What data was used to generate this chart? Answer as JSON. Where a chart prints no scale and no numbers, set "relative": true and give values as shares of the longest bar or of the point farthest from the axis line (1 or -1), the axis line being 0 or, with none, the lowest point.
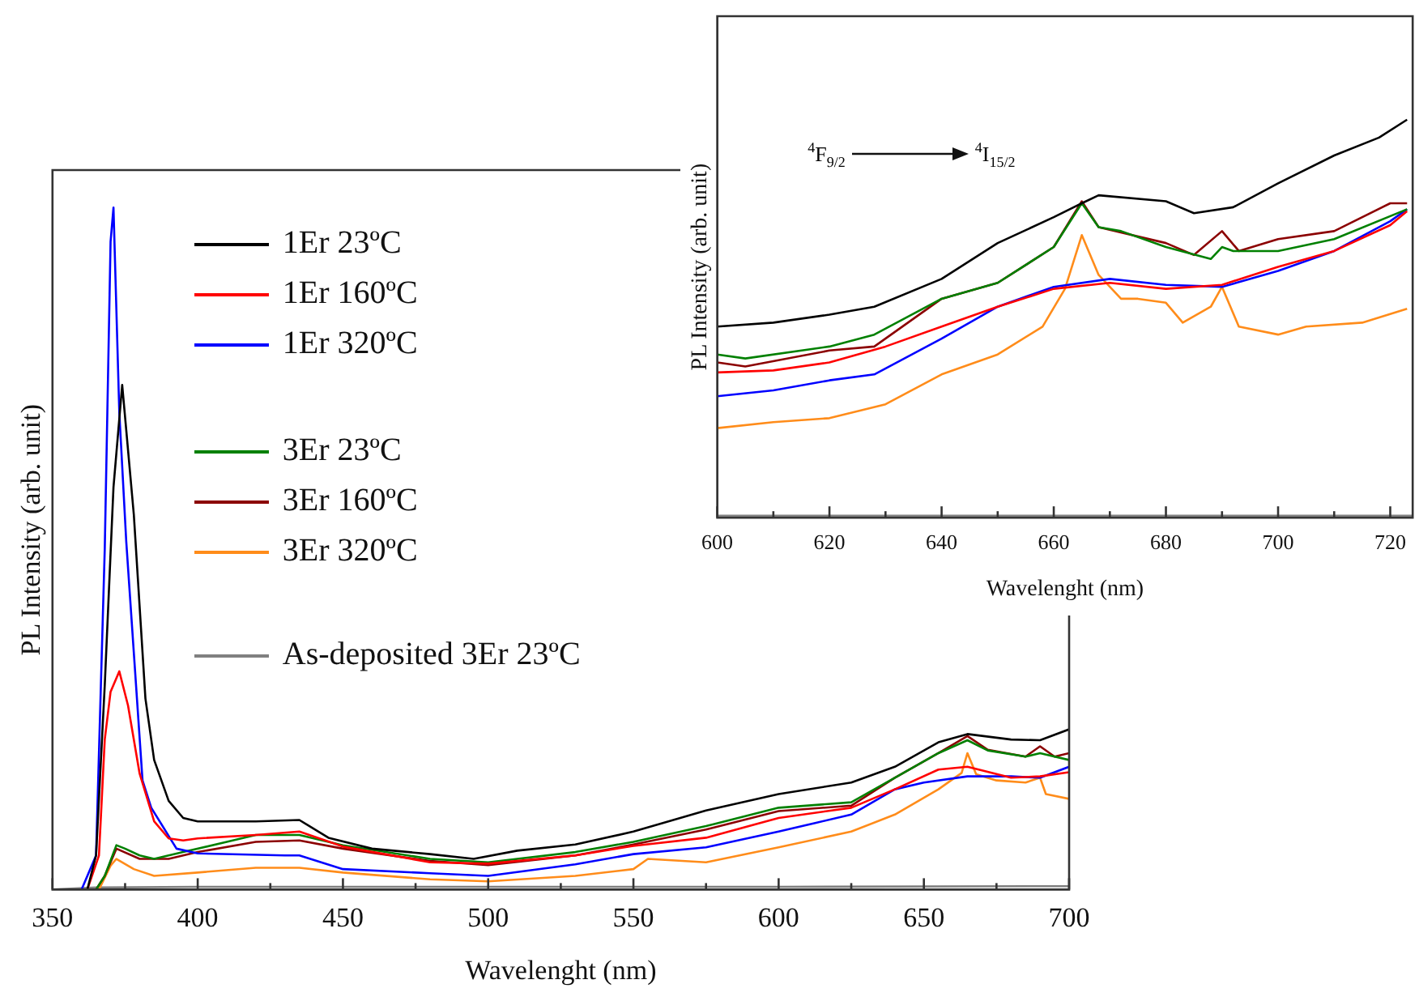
{
  "chart_data": [
    {
      "type": "line",
      "relative": true,
      "xlabel": "Wavelenght (nm)",
      "ylabel": "PL Intensity (arb. unit)",
      "xlim": [
        350,
        700
      ],
      "xticks": [
        350,
        {
          "value": 375,
          "label": null
        },
        400,
        {
          "value": 425,
          "label": null
        },
        450,
        {
          "value": 475,
          "label": null
        },
        500,
        {
          "value": 525,
          "label": null
        },
        550,
        {
          "value": 575,
          "label": null
        },
        600,
        {
          "value": 625,
          "label": null
        },
        650,
        {
          "value": 675,
          "label": null
        },
        700
      ],
      "tick_labels": "x",
      "legend": "top left",
      "series": [
        {
          "name": "1Er 23ºC",
          "color": "#000000",
          "x": [
            350,
            362,
            365,
            368,
            371,
            374,
            378,
            382,
            385,
            390,
            395,
            400,
            420,
            435,
            445,
            460,
            480,
            495,
            510,
            530,
            550,
            575,
            600,
            625,
            640,
            655,
            665,
            680,
            690,
            700
          ],
          "values": [
            0,
            0,
            0.05,
            0.3,
            0.59,
            0.74,
            0.55,
            0.28,
            0.19,
            0.13,
            0.105,
            0.1,
            0.1,
            0.102,
            0.076,
            0.06,
            0.052,
            0.045,
            0.057,
            0.066,
            0.085,
            0.116,
            0.14,
            0.157,
            0.18,
            0.216,
            0.228,
            0.22,
            0.219,
            0.235
          ]
        },
        {
          "name": "1Er 160ºC",
          "color": "#ff0000",
          "x": [
            350,
            362,
            366,
            368,
            370,
            373,
            376,
            380,
            385,
            390,
            395,
            400,
            420,
            435,
            450,
            480,
            500,
            530,
            550,
            575,
            600,
            625,
            640,
            655,
            665,
            680,
            690,
            700
          ],
          "values": [
            0,
            0,
            0.05,
            0.22,
            0.29,
            0.32,
            0.27,
            0.17,
            0.1,
            0.075,
            0.072,
            0.075,
            0.08,
            0.085,
            0.063,
            0.04,
            0.038,
            0.05,
            0.064,
            0.076,
            0.105,
            0.12,
            0.147,
            0.176,
            0.18,
            0.164,
            0.166,
            0.172
          ]
        },
        {
          "name": "1Er 320ºC",
          "color": "#0000ff",
          "x": [
            350,
            360,
            365,
            368,
            370,
            371,
            373,
            375.4,
            381,
            384,
            392.7,
            400,
            430,
            435,
            450,
            480,
            500,
            530,
            550,
            575,
            600,
            625,
            640,
            650,
            665,
            680,
            690,
            700
          ],
          "values": [
            0,
            0,
            0.05,
            0.5,
            0.95,
            1,
            0.7,
            0.51,
            0.16,
            0.12,
            0.06,
            0.053,
            0.05,
            0.05,
            0.03,
            0.024,
            0.02,
            0.037,
            0.052,
            0.062,
            0.085,
            0.11,
            0.147,
            0.157,
            0.166,
            0.166,
            0.164,
            0.18
          ]
        },
        {
          "name": "3Er 23ºC",
          "color": "#008000",
          "x": [
            350,
            365,
            368,
            372,
            375,
            380,
            385,
            395,
            410,
            420,
            435,
            450,
            480,
            500,
            530,
            550,
            575,
            600,
            625,
            640,
            655,
            665,
            672,
            685,
            690,
            700
          ],
          "values": [
            0,
            0,
            0.02,
            0.065,
            0.06,
            0.05,
            0.045,
            0.055,
            0.07,
            0.08,
            0.08,
            0.065,
            0.045,
            0.04,
            0.055,
            0.07,
            0.093,
            0.12,
            0.128,
            0.164,
            0.2,
            0.219,
            0.204,
            0.195,
            0.2,
            0.19
          ]
        },
        {
          "name": "3Er 160ºC",
          "color": "#8b0000",
          "x": [
            350,
            365,
            368,
            372,
            380,
            390,
            400,
            420,
            435,
            450,
            480,
            500,
            530,
            550,
            575,
            600,
            625,
            640,
            655,
            665,
            672,
            685,
            690,
            695,
            700
          ],
          "values": [
            0,
            0,
            0.02,
            0.06,
            0.045,
            0.045,
            0.055,
            0.07,
            0.072,
            0.06,
            0.042,
            0.036,
            0.05,
            0.066,
            0.088,
            0.115,
            0.123,
            0.164,
            0.2,
            0.225,
            0.205,
            0.195,
            0.21,
            0.195,
            0.2
          ]
        },
        {
          "name": "3Er 320ºC",
          "color": "#ff8c1a",
          "x": [
            350,
            366,
            370,
            372,
            378,
            385,
            400,
            420,
            435,
            450,
            480,
            500,
            530,
            550,
            555,
            575,
            600,
            625,
            640,
            655,
            663,
            665,
            668,
            675,
            685,
            690,
            692,
            700
          ],
          "values": [
            0,
            0,
            0.035,
            0.045,
            0.03,
            0.02,
            0.025,
            0.032,
            0.032,
            0.025,
            0.015,
            0.012,
            0.02,
            0.03,
            0.045,
            0.04,
            0.062,
            0.085,
            0.11,
            0.147,
            0.171,
            0.2,
            0.169,
            0.16,
            0.157,
            0.164,
            0.14,
            0.133
          ]
        },
        {
          "name": "As-deposited 3Er 23ºC",
          "color": "#808080",
          "x": [
            350,
            365,
            400,
            500,
            600,
            700
          ],
          "values": [
            0,
            0.003,
            0.004,
            0.004,
            0.004,
            0.005
          ]
        }
      ]
    },
    {
      "type": "line",
      "relative": true,
      "xlabel": "Wavelenght (nm)",
      "ylabel": "PL Intensity (arb. unit)",
      "xlim": [
        600,
        724
      ],
      "xticks": [
        600,
        {
          "value": 610,
          "label": null
        },
        620,
        {
          "value": 630,
          "label": null
        },
        640,
        {
          "value": 650,
          "label": null
        },
        660,
        {
          "value": 670,
          "label": null
        },
        680,
        {
          "value": 690,
          "label": null
        },
        700,
        {
          "value": 710,
          "label": null
        },
        720
      ],
      "tick_labels": "x",
      "annotations": [
        "$^{4}$F$_{9/2}$",
        "$^{4}$I$_{15/2}$"
      ],
      "series": [
        {
          "color": "#000000",
          "x": [
            600,
            610,
            620,
            628,
            640,
            650,
            660,
            665,
            668,
            680,
            685,
            692,
            700,
            710,
            718,
            723
          ],
          "values": [
            0.48,
            0.49,
            0.51,
            0.53,
            0.6,
            0.69,
            0.755,
            0.79,
            0.81,
            0.795,
            0.765,
            0.78,
            0.84,
            0.91,
            0.955,
            1
          ]
        },
        {
          "color": "#008000",
          "x": [
            600,
            605,
            620,
            628,
            640,
            650,
            660,
            665,
            668,
            672,
            680,
            688,
            690,
            692,
            700,
            710,
            723
          ],
          "values": [
            0.41,
            0.4,
            0.43,
            0.46,
            0.55,
            0.59,
            0.68,
            0.79,
            0.73,
            0.72,
            0.68,
            0.65,
            0.68,
            0.67,
            0.67,
            0.7,
            0.775
          ]
        },
        {
          "color": "#8b0000",
          "x": [
            600,
            605,
            620,
            628,
            640,
            650,
            660,
            665,
            668,
            680,
            685,
            690,
            693,
            700,
            710,
            720,
            723
          ],
          "values": [
            0.39,
            0.38,
            0.42,
            0.43,
            0.55,
            0.59,
            0.68,
            0.795,
            0.73,
            0.69,
            0.66,
            0.72,
            0.67,
            0.7,
            0.72,
            0.79,
            0.79
          ]
        },
        {
          "color": "#ff0000",
          "x": [
            600,
            610,
            620,
            630,
            640,
            650,
            660,
            670,
            680,
            690,
            700,
            710,
            720,
            723
          ],
          "values": [
            0.365,
            0.37,
            0.39,
            0.43,
            0.48,
            0.53,
            0.575,
            0.59,
            0.575,
            0.585,
            0.63,
            0.67,
            0.735,
            0.77
          ]
        },
        {
          "color": "#0000ff",
          "x": [
            600,
            610,
            620,
            628,
            640,
            650,
            660,
            670,
            680,
            690,
            700,
            710,
            720,
            723
          ],
          "values": [
            0.305,
            0.32,
            0.345,
            0.36,
            0.45,
            0.53,
            0.58,
            0.6,
            0.585,
            0.58,
            0.62,
            0.67,
            0.745,
            0.775
          ]
        },
        {
          "color": "#ff8c1a",
          "x": [
            600,
            610,
            620,
            630,
            640,
            650,
            658,
            662,
            665,
            668,
            672,
            675,
            680,
            683,
            688,
            690,
            693,
            700,
            705,
            715,
            723
          ],
          "values": [
            0.225,
            0.24,
            0.25,
            0.285,
            0.36,
            0.41,
            0.48,
            0.575,
            0.71,
            0.61,
            0.55,
            0.55,
            0.54,
            0.49,
            0.53,
            0.58,
            0.48,
            0.46,
            0.48,
            0.49,
            0.525
          ]
        },
        {
          "color": "#808080",
          "x": [
            600,
            660,
            724
          ],
          "values": [
            0.005,
            0.005,
            0.005
          ]
        }
      ]
    }
  ]
}
